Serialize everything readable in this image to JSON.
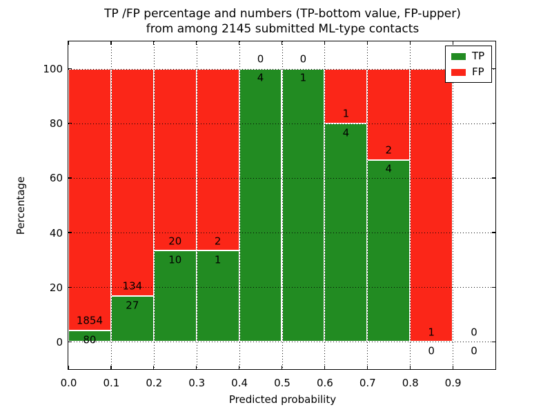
{
  "title": {
    "line1": "TP /FP percentage and numbers (TP-bottom value, FP-upper)",
    "line2": "from among 2145 submitted ML-type contacts"
  },
  "colors": {
    "tp": "#228b22",
    "fp": "#fb2618",
    "grid": "#000000",
    "background": "#ffffff"
  },
  "chart_data": {
    "type": "bar",
    "stacked": true,
    "title": "TP /FP percentage and numbers (TP-bottom value, FP-upper) from among 2145 submitted ML-type contacts",
    "xlabel": "Predicted probability",
    "ylabel": "Percentage",
    "total_contacts": 2145,
    "xlim": [
      0.0,
      1.0
    ],
    "ylim": [
      -10,
      110
    ],
    "xticks": [
      "0.0",
      "0.1",
      "0.2",
      "0.3",
      "0.4",
      "0.5",
      "0.6",
      "0.7",
      "0.8",
      "0.9"
    ],
    "yticks": [
      0,
      20,
      40,
      60,
      80,
      100
    ],
    "grid": true,
    "grid_style": "dotted",
    "legend": {
      "position": "upper right",
      "entries": [
        {
          "label": "TP",
          "color": "#228b22"
        },
        {
          "label": "FP",
          "color": "#fb2618"
        }
      ]
    },
    "bins": [
      {
        "x0": 0.0,
        "x1": 0.1,
        "tp": 80,
        "fp": 1854,
        "tp_pct": 4.14,
        "fp_pct": 95.86
      },
      {
        "x0": 0.1,
        "x1": 0.2,
        "tp": 27,
        "fp": 134,
        "tp_pct": 16.77,
        "fp_pct": 83.23
      },
      {
        "x0": 0.2,
        "x1": 0.3,
        "tp": 10,
        "fp": 20,
        "tp_pct": 33.33,
        "fp_pct": 66.67
      },
      {
        "x0": 0.3,
        "x1": 0.4,
        "tp": 1,
        "fp": 2,
        "tp_pct": 33.33,
        "fp_pct": 66.67
      },
      {
        "x0": 0.4,
        "x1": 0.5,
        "tp": 4,
        "fp": 0,
        "tp_pct": 100,
        "fp_pct": 0
      },
      {
        "x0": 0.5,
        "x1": 0.6,
        "tp": 1,
        "fp": 0,
        "tp_pct": 100,
        "fp_pct": 0
      },
      {
        "x0": 0.6,
        "x1": 0.7,
        "tp": 4,
        "fp": 1,
        "tp_pct": 80,
        "fp_pct": 20
      },
      {
        "x0": 0.7,
        "x1": 0.8,
        "tp": 4,
        "fp": 2,
        "tp_pct": 66.67,
        "fp_pct": 33.33
      },
      {
        "x0": 0.8,
        "x1": 0.9,
        "tp": 0,
        "fp": 1,
        "tp_pct": 0,
        "fp_pct": 100
      },
      {
        "x0": 0.9,
        "x1": 1.0,
        "tp": 0,
        "fp": 0,
        "tp_pct": 0,
        "fp_pct": 0
      }
    ]
  }
}
